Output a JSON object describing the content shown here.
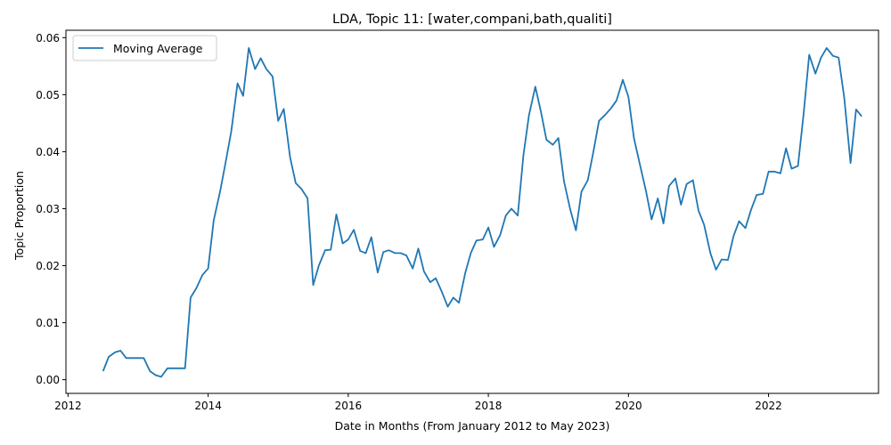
{
  "chart_data": {
    "type": "line",
    "title": "LDA, Topic 11: [water,compani,bath,qualiti]",
    "xlabel": "Date in Months (From January 2012 to May 2023)",
    "ylabel": "Topic Proportion",
    "xlim": [
      2011.97,
      2023.57
    ],
    "ylim": [
      -0.0024,
      0.0613
    ],
    "x_ticks": [
      2012,
      2014,
      2016,
      2018,
      2020,
      2022
    ],
    "y_ticks": [
      0.0,
      0.01,
      0.02,
      0.03,
      0.04,
      0.05,
      0.06
    ],
    "y_tick_labels": [
      "0.00",
      "0.01",
      "0.02",
      "0.03",
      "0.04",
      "0.05",
      "0.06"
    ],
    "grid": false,
    "legend": {
      "position": "top-left"
    },
    "series": [
      {
        "name": "Moving Average",
        "color": "#1f77b4",
        "x": [
          2012.5,
          2012.58,
          2012.67,
          2012.75,
          2012.83,
          2012.92,
          2013.0,
          2013.08,
          2013.17,
          2013.25,
          2013.33,
          2013.42,
          2013.5,
          2013.58,
          2013.67,
          2013.75,
          2013.83,
          2013.92,
          2014.0,
          2014.08,
          2014.17,
          2014.25,
          2014.33,
          2014.42,
          2014.5,
          2014.58,
          2014.67,
          2014.75,
          2014.83,
          2014.92,
          2015.0,
          2015.08,
          2015.17,
          2015.25,
          2015.33,
          2015.42,
          2015.5,
          2015.58,
          2015.67,
          2015.75,
          2015.83,
          2015.92,
          2016.0,
          2016.08,
          2016.17,
          2016.25,
          2016.33,
          2016.42,
          2016.5,
          2016.58,
          2016.67,
          2016.75,
          2016.83,
          2016.92,
          2017.0,
          2017.08,
          2017.17,
          2017.25,
          2017.33,
          2017.42,
          2017.5,
          2017.58,
          2017.67,
          2017.75,
          2017.83,
          2017.92,
          2018.0,
          2018.08,
          2018.17,
          2018.25,
          2018.33,
          2018.42,
          2018.5,
          2018.58,
          2018.67,
          2018.75,
          2018.83,
          2018.92,
          2019.0,
          2019.08,
          2019.17,
          2019.25,
          2019.33,
          2019.42,
          2019.5,
          2019.58,
          2019.67,
          2019.75,
          2019.83,
          2019.92,
          2020.0,
          2020.08,
          2020.17,
          2020.25,
          2020.33,
          2020.42,
          2020.5,
          2020.58,
          2020.67,
          2020.75,
          2020.83,
          2020.92,
          2021.0,
          2021.08,
          2021.17,
          2021.25,
          2021.33,
          2021.42,
          2021.5,
          2021.58,
          2021.67,
          2021.75,
          2021.83,
          2021.92,
          2022.0,
          2022.08,
          2022.17,
          2022.25,
          2022.33,
          2022.42,
          2022.5,
          2022.58,
          2022.67,
          2022.75,
          2022.83,
          2022.92,
          2023.0,
          2023.08,
          2023.17,
          2023.25,
          2023.33
        ],
        "y": [
          0.0015,
          0.004,
          0.0048,
          0.0051,
          0.0038,
          0.0038,
          0.0038,
          0.0038,
          0.0015,
          0.0008,
          0.0005,
          0.002,
          0.002,
          0.002,
          0.002,
          0.0144,
          0.016,
          0.0184,
          0.0195,
          0.028,
          0.033,
          0.0382,
          0.0435,
          0.052,
          0.0498,
          0.0582,
          0.0545,
          0.0564,
          0.0545,
          0.0532,
          0.0454,
          0.0475,
          0.039,
          0.0345,
          0.0335,
          0.0318,
          0.0166,
          0.02,
          0.0227,
          0.0228,
          0.029,
          0.0239,
          0.0246,
          0.0263,
          0.0226,
          0.0222,
          0.025,
          0.0188,
          0.0224,
          0.0227,
          0.0222,
          0.0222,
          0.0218,
          0.0195,
          0.023,
          0.019,
          0.0171,
          0.0178,
          0.0156,
          0.0128,
          0.0144,
          0.0135,
          0.0187,
          0.0222,
          0.0244,
          0.0246,
          0.0267,
          0.0233,
          0.0254,
          0.0288,
          0.03,
          0.0288,
          0.0393,
          0.0464,
          0.0514,
          0.0471,
          0.0421,
          0.0412,
          0.0424,
          0.0348,
          0.0298,
          0.0262,
          0.033,
          0.035,
          0.04,
          0.0454,
          0.0465,
          0.0476,
          0.049,
          0.0526,
          0.0496,
          0.0423,
          0.0374,
          0.0331,
          0.0281,
          0.0318,
          0.0274,
          0.034,
          0.0353,
          0.0307,
          0.0343,
          0.035,
          0.0297,
          0.0272,
          0.0222,
          0.0193,
          0.0211,
          0.021,
          0.0252,
          0.0278,
          0.0266,
          0.0298,
          0.0324,
          0.0326,
          0.0365,
          0.0365,
          0.0362,
          0.0406,
          0.037,
          0.0375,
          0.0466,
          0.057,
          0.0537,
          0.0565,
          0.0582,
          0.0568,
          0.0565,
          0.0495,
          0.038,
          0.0474,
          0.0462
        ]
      }
    ]
  }
}
